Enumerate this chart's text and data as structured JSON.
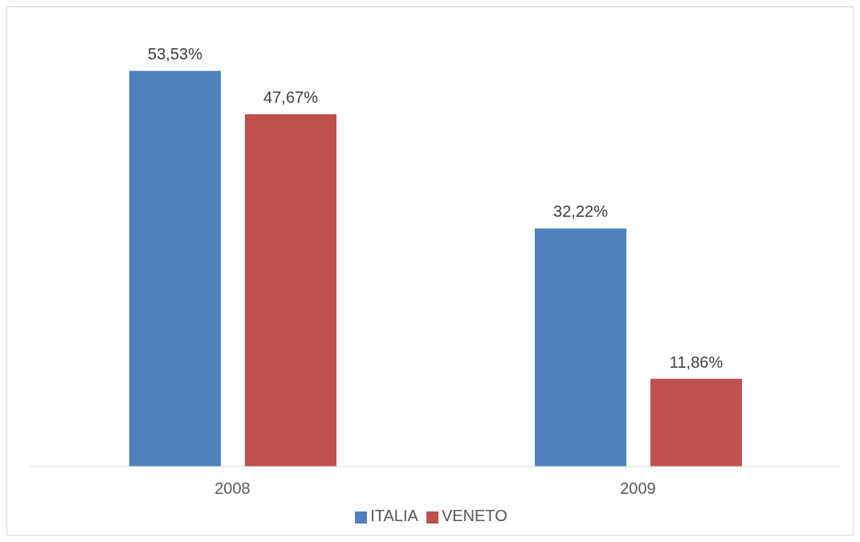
{
  "chart_data": {
    "type": "bar",
    "categories": [
      "2008",
      "2009"
    ],
    "series": [
      {
        "name": "ITALIA",
        "color": "#4f81bd",
        "values": [
          53.53,
          32.22
        ],
        "value_labels": [
          "53,53%",
          "32,22%"
        ]
      },
      {
        "name": "VENETO",
        "color": "#c0504d",
        "values": [
          47.67,
          11.86
        ],
        "value_labels": [
          "47,67%",
          "11,86%"
        ]
      }
    ],
    "legend": "bottom",
    "grid": false
  }
}
